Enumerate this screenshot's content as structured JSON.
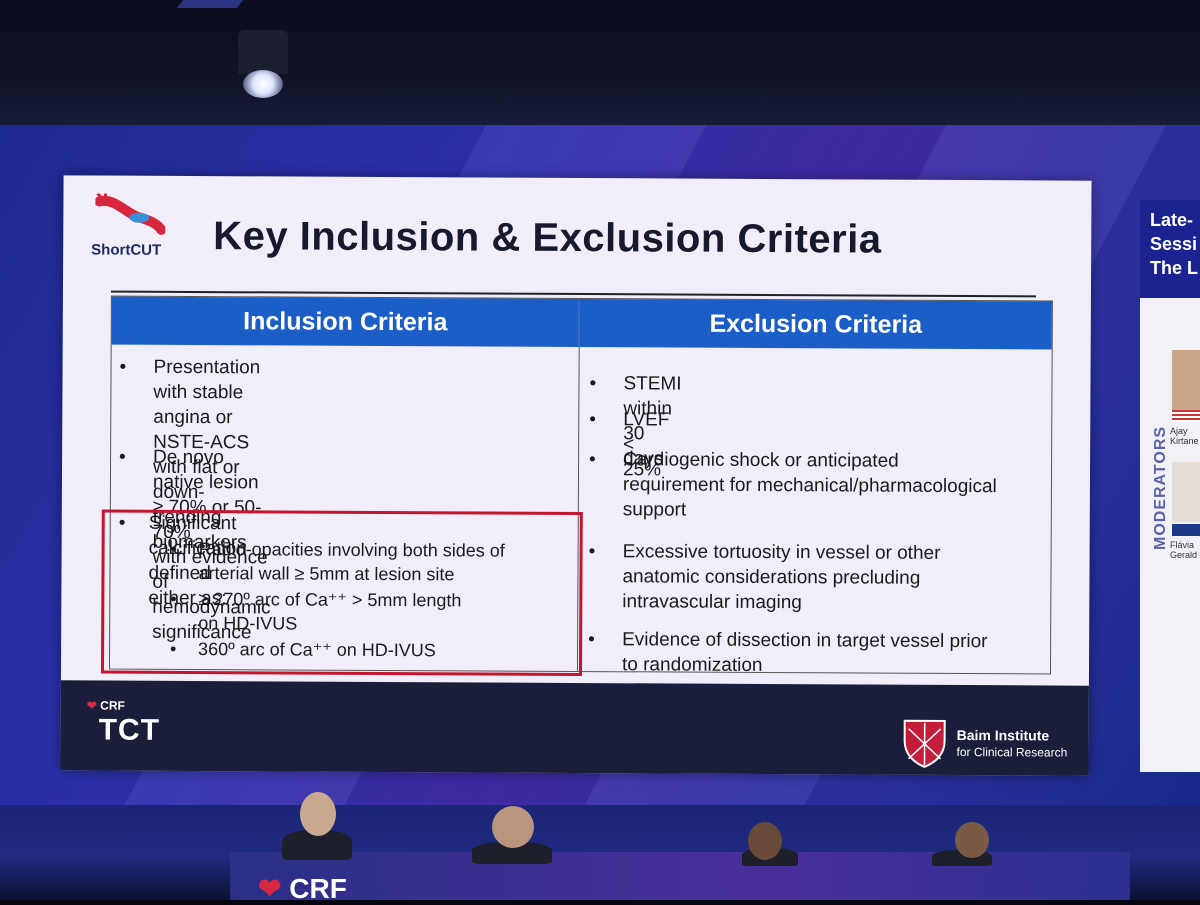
{
  "slide": {
    "logo_text": "ShortCUT",
    "title": "Key Inclusion & Exclusion Criteria",
    "inclusion": {
      "header": "Inclusion Criteria",
      "items": [
        [
          "Presentation with stable angina or",
          "NSTE-ACS with flat or down-trending",
          "biomarkers"
        ],
        [
          "De novo native lesion ≥ 70% or 50-70%",
          "with evidence of hemodynamic significance"
        ],
        [
          "Significant calcification defined either as:"
        ]
      ],
      "sub_items": [
        [
          "Radio-opacities involving both sides of",
          "arterial wall ≥ 5mm at lesion site"
        ],
        [
          "≥ 270º arc of Ca⁺⁺ > 5mm length",
          "on HD-IVUS"
        ],
        [
          "360º arc of Ca⁺⁺ on HD-IVUS"
        ]
      ]
    },
    "exclusion": {
      "header": "Exclusion Criteria",
      "items": [
        [
          "STEMI within 30 days"
        ],
        [
          "LVEF < 25%"
        ],
        [
          "Cardiogenic shock or anticipated",
          "requirement for mechanical/pharmacological",
          "support"
        ],
        [
          "Excessive tortuosity in vessel or other",
          "anatomic considerations precluding",
          "intravascular imaging"
        ],
        [
          "Evidence of dissection in target vessel prior",
          "to randomization"
        ]
      ]
    },
    "bullet": "•",
    "footer": {
      "crf": "CRF",
      "tct": "TCT",
      "baim_line1": "Baim Institute",
      "baim_line2": "for Clinical Research"
    }
  },
  "side_screen": {
    "title_lines": [
      "Late-",
      "Sessi",
      "The L"
    ],
    "moderators_label": "MODERATORS",
    "moderators": [
      {
        "first": "Ajay",
        "last": "Kirtane"
      },
      {
        "first": "Flávia",
        "last": "Gerald"
      }
    ]
  },
  "stage": {
    "crf_bottom": "CRF"
  },
  "colors": {
    "header_blue": "#1c5ec7",
    "highlight_red": "#c3152f",
    "footer_navy": "#1a1e3a"
  }
}
